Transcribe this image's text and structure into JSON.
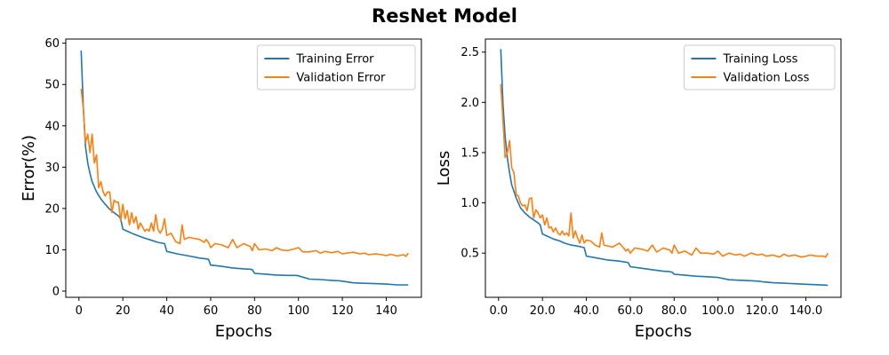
{
  "figure": {
    "title": "ResNet Model"
  },
  "chart_data": [
    {
      "type": "line",
      "title": "",
      "xlabel": "Epochs",
      "ylabel": "Error(%)",
      "xlim": [
        -6,
        156
      ],
      "ylim": [
        -1.5,
        61
      ],
      "xticks": [
        0,
        20,
        40,
        60,
        80,
        100,
        120,
        140
      ],
      "yticks": [
        0,
        10,
        20,
        30,
        40,
        50,
        60
      ],
      "tick_format": "int",
      "legend_position": "top-right",
      "grid": false,
      "series": [
        {
          "name": "Training Error",
          "color": "#1f77b4",
          "x": [
            1,
            2,
            3,
            4,
            5,
            6,
            8,
            10,
            12,
            14,
            16,
            18,
            19,
            20,
            22,
            25,
            28,
            30,
            33,
            36,
            38,
            39,
            40,
            45,
            50,
            55,
            58,
            59,
            60,
            65,
            70,
            75,
            78,
            79,
            80,
            85,
            90,
            95,
            99,
            100,
            105,
            110,
            115,
            119,
            120,
            125,
            130,
            135,
            140,
            145,
            150
          ],
          "y": [
            58.2,
            44,
            35,
            31,
            28.5,
            26.5,
            24,
            22.3,
            21,
            19.8,
            19,
            18.2,
            17.5,
            15,
            14.5,
            13.8,
            13.2,
            12.8,
            12.3,
            11.8,
            11.6,
            11.5,
            9.6,
            9.0,
            8.5,
            8.0,
            7.8,
            7.7,
            6.3,
            6.0,
            5.6,
            5.4,
            5.3,
            5.2,
            4.3,
            4.1,
            3.9,
            3.8,
            3.8,
            3.7,
            2.9,
            2.8,
            2.6,
            2.5,
            2.4,
            2.0,
            1.9,
            1.8,
            1.7,
            1.5,
            1.5
          ]
        },
        {
          "name": "Validation Error",
          "color": "#ff7f0e",
          "x": [
            1,
            2,
            3,
            4,
            5,
            6,
            7,
            8,
            9,
            10,
            11,
            12,
            13,
            14,
            15,
            16,
            17,
            18,
            19,
            20,
            21,
            22,
            23,
            24,
            25,
            26,
            27,
            28,
            29,
            30,
            31,
            32,
            33,
            34,
            35,
            36,
            37,
            38,
            39,
            40,
            42,
            44,
            46,
            47,
            48,
            50,
            52,
            55,
            57,
            58,
            59,
            60,
            62,
            65,
            68,
            70,
            72,
            75,
            78,
            79,
            80,
            82,
            85,
            88,
            90,
            92,
            95,
            98,
            100,
            102,
            105,
            108,
            110,
            112,
            115,
            118,
            120,
            122,
            125,
            128,
            130,
            132,
            135,
            138,
            140,
            142,
            145,
            148,
            149,
            150
          ],
          "y": [
            49,
            44,
            36,
            38,
            33.5,
            38,
            31,
            33,
            25,
            26.5,
            24,
            23,
            24,
            24,
            19,
            22,
            21.5,
            21.5,
            17,
            21,
            17.5,
            19.5,
            16,
            19,
            16.5,
            18,
            15,
            16.5,
            15.5,
            14.5,
            15,
            14.5,
            16.5,
            14.5,
            18.5,
            15,
            14,
            15,
            17.5,
            13.5,
            14,
            12,
            11.5,
            16,
            12.5,
            13,
            12.8,
            12.5,
            11.8,
            12.5,
            11.8,
            10.5,
            11.5,
            11.2,
            10.5,
            12.5,
            10.5,
            11.5,
            10.8,
            9.8,
            11.5,
            10,
            10.2,
            9.8,
            10.5,
            10,
            9.8,
            10.2,
            10.5,
            9.5,
            9.5,
            9.8,
            9.2,
            9.6,
            9.3,
            9.6,
            9.0,
            9.2,
            9.4,
            9.0,
            9.2,
            8.8,
            9.0,
            8.8,
            8.6,
            8.9,
            8.5,
            8.8,
            8.4,
            9.2
          ]
        }
      ]
    },
    {
      "type": "line",
      "title": "",
      "xlabel": "Epochs",
      "ylabel": "Loss",
      "xlim": [
        -6,
        156
      ],
      "ylim": [
        0.06,
        2.63
      ],
      "xticks": [
        0,
        20,
        40,
        60,
        80,
        100,
        120,
        140
      ],
      "yticks": [
        0.5,
        1.0,
        1.5,
        2.0,
        2.5
      ],
      "tick_format": "fixed1",
      "legend_position": "top-right",
      "grid": false,
      "series": [
        {
          "name": "Training Loss",
          "color": "#1f77b4",
          "x": [
            1,
            2,
            3,
            4,
            5,
            6,
            8,
            10,
            12,
            14,
            16,
            18,
            19,
            20,
            22,
            25,
            28,
            30,
            33,
            36,
            38,
            39,
            40,
            45,
            50,
            55,
            58,
            59,
            60,
            65,
            70,
            75,
            78,
            79,
            80,
            85,
            90,
            95,
            99,
            100,
            105,
            110,
            115,
            119,
            120,
            125,
            130,
            135,
            140,
            145,
            150
          ],
          "y": [
            2.53,
            1.98,
            1.66,
            1.45,
            1.3,
            1.18,
            1.05,
            0.95,
            0.9,
            0.86,
            0.83,
            0.8,
            0.78,
            0.69,
            0.67,
            0.64,
            0.62,
            0.6,
            0.58,
            0.57,
            0.56,
            0.555,
            0.47,
            0.45,
            0.43,
            0.42,
            0.41,
            0.405,
            0.365,
            0.35,
            0.335,
            0.32,
            0.315,
            0.31,
            0.29,
            0.28,
            0.27,
            0.265,
            0.26,
            0.258,
            0.235,
            0.23,
            0.225,
            0.22,
            0.215,
            0.205,
            0.2,
            0.195,
            0.19,
            0.185,
            0.18
          ]
        },
        {
          "name": "Validation Loss",
          "color": "#ff7f0e",
          "x": [
            1,
            2,
            3,
            4,
            5,
            6,
            7,
            8,
            9,
            10,
            11,
            12,
            13,
            14,
            15,
            16,
            17,
            18,
            19,
            20,
            21,
            22,
            23,
            24,
            25,
            26,
            27,
            28,
            29,
            30,
            31,
            32,
            33,
            34,
            35,
            36,
            37,
            38,
            39,
            40,
            42,
            44,
            46,
            47,
            48,
            50,
            52,
            55,
            57,
            58,
            59,
            60,
            62,
            65,
            68,
            70,
            72,
            75,
            78,
            79,
            80,
            82,
            85,
            88,
            90,
            92,
            95,
            98,
            100,
            102,
            105,
            108,
            110,
            112,
            115,
            118,
            120,
            122,
            125,
            128,
            130,
            132,
            135,
            138,
            140,
            142,
            145,
            148,
            149,
            150
          ],
          "y": [
            2.18,
            1.82,
            1.45,
            1.5,
            1.62,
            1.35,
            1.3,
            1.08,
            1.07,
            1.0,
            0.97,
            0.98,
            0.92,
            1.04,
            1.05,
            0.85,
            0.93,
            0.9,
            0.85,
            0.88,
            0.78,
            0.85,
            0.75,
            0.76,
            0.71,
            0.75,
            0.7,
            0.68,
            0.72,
            0.68,
            0.7,
            0.67,
            0.9,
            0.65,
            0.72,
            0.65,
            0.6,
            0.68,
            0.6,
            0.63,
            0.62,
            0.58,
            0.56,
            0.7,
            0.58,
            0.57,
            0.56,
            0.6,
            0.55,
            0.52,
            0.54,
            0.5,
            0.55,
            0.54,
            0.52,
            0.58,
            0.51,
            0.55,
            0.53,
            0.5,
            0.58,
            0.5,
            0.52,
            0.48,
            0.55,
            0.5,
            0.5,
            0.49,
            0.52,
            0.47,
            0.5,
            0.48,
            0.49,
            0.47,
            0.5,
            0.48,
            0.49,
            0.47,
            0.48,
            0.46,
            0.49,
            0.47,
            0.48,
            0.46,
            0.47,
            0.48,
            0.47,
            0.47,
            0.46,
            0.5
          ]
        }
      ]
    }
  ]
}
